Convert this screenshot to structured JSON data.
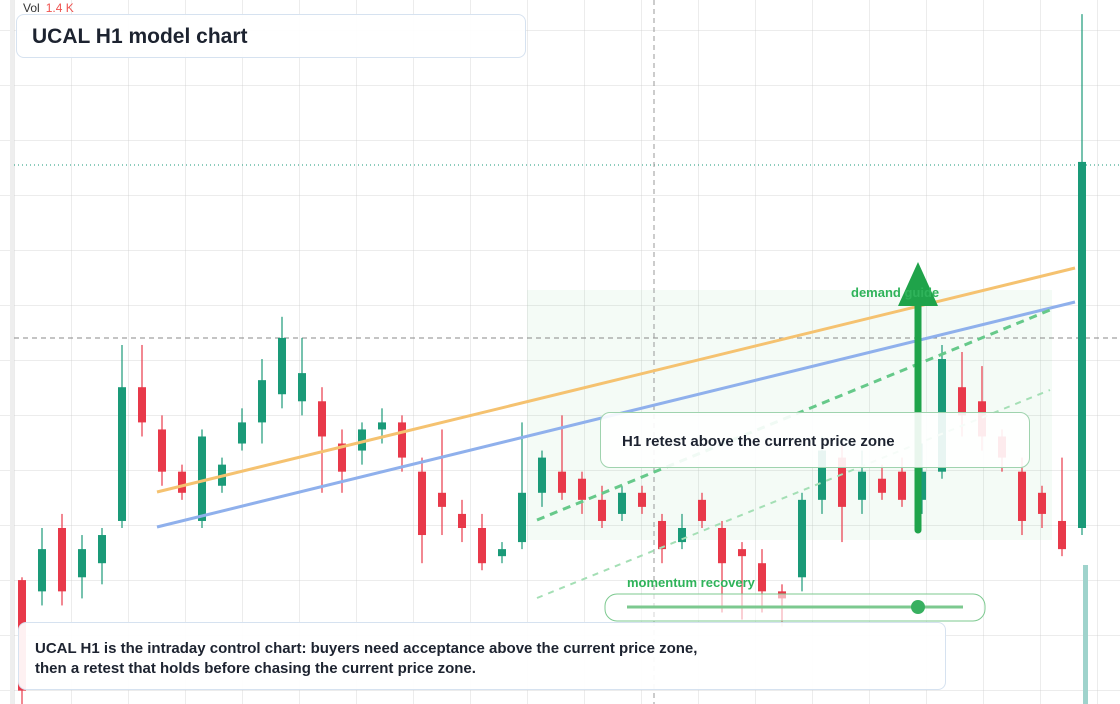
{
  "header": {
    "vol_label": "Vol",
    "vol_value": "1.4 K",
    "title": "UCAL H1 model chart"
  },
  "annotations": {
    "demand": "demand guide",
    "retest": "H1 retest above the current price zone",
    "momentum": "momentum recovery"
  },
  "description": {
    "lines": [
      "UCAL H1 is the intraday control chart: buyers need acceptance above the current price zone,",
      "then a retest that holds before chasing the current price zone."
    ]
  },
  "chart_data": {
    "type": "candlestick",
    "ylim": [
      0,
      100
    ],
    "up_color": "#1a9a78",
    "down_color": "#e8394a",
    "ohlc": [
      [
        17.6,
        18,
        0,
        1.9
      ],
      [
        16,
        25,
        14,
        22
      ],
      [
        25,
        27,
        14,
        16
      ],
      [
        18,
        24,
        15,
        22
      ],
      [
        20,
        25,
        17,
        24
      ],
      [
        26,
        51,
        25,
        45
      ],
      [
        45,
        51,
        38,
        40
      ],
      [
        39,
        41,
        31,
        33
      ],
      [
        33,
        34,
        29,
        30
      ],
      [
        26,
        39,
        25,
        38
      ],
      [
        31,
        35,
        30,
        34
      ],
      [
        37,
        42,
        36,
        40
      ],
      [
        40,
        49,
        37,
        46
      ],
      [
        44,
        55,
        42,
        52
      ],
      [
        43,
        52,
        41,
        47
      ],
      [
        43,
        45,
        30,
        38
      ],
      [
        37,
        39,
        30,
        33
      ],
      [
        36,
        40,
        34,
        39
      ],
      [
        39,
        42,
        37,
        40
      ],
      [
        40,
        41,
        33,
        35
      ],
      [
        33,
        35,
        20,
        24
      ],
      [
        30,
        39,
        24,
        28
      ],
      [
        27,
        29,
        23,
        25
      ],
      [
        25,
        27,
        19,
        20
      ],
      [
        21,
        23,
        20,
        22
      ],
      [
        23,
        40,
        22,
        30
      ],
      [
        30,
        36,
        28,
        35
      ],
      [
        33,
        41,
        29,
        30
      ],
      [
        32,
        33,
        27,
        29
      ],
      [
        29,
        31,
        25,
        26
      ],
      [
        27,
        31,
        26,
        30
      ],
      [
        30,
        31,
        27,
        28
      ],
      [
        26,
        27,
        20,
        22
      ],
      [
        23,
        27,
        22,
        25
      ],
      [
        29,
        30,
        25,
        26
      ],
      [
        25,
        26,
        13,
        20
      ],
      [
        22,
        23,
        12,
        21
      ],
      [
        20,
        22,
        13,
        16
      ],
      [
        16,
        17,
        11,
        15
      ],
      [
        18,
        30,
        16,
        29
      ],
      [
        29,
        38,
        27,
        36
      ],
      [
        35,
        37,
        23,
        28
      ],
      [
        29,
        36,
        27,
        33
      ],
      [
        32,
        34,
        29,
        30
      ],
      [
        33,
        35,
        28,
        29
      ],
      [
        29,
        37,
        27,
        33
      ],
      [
        33,
        51,
        32,
        49
      ],
      [
        45,
        50,
        38,
        41
      ],
      [
        43,
        48,
        36,
        38
      ],
      [
        38,
        39,
        33,
        35
      ],
      [
        33,
        35,
        24,
        26
      ],
      [
        30,
        31,
        25,
        27
      ],
      [
        26,
        35,
        21,
        22
      ],
      [
        25,
        98,
        24,
        77
      ]
    ]
  }
}
